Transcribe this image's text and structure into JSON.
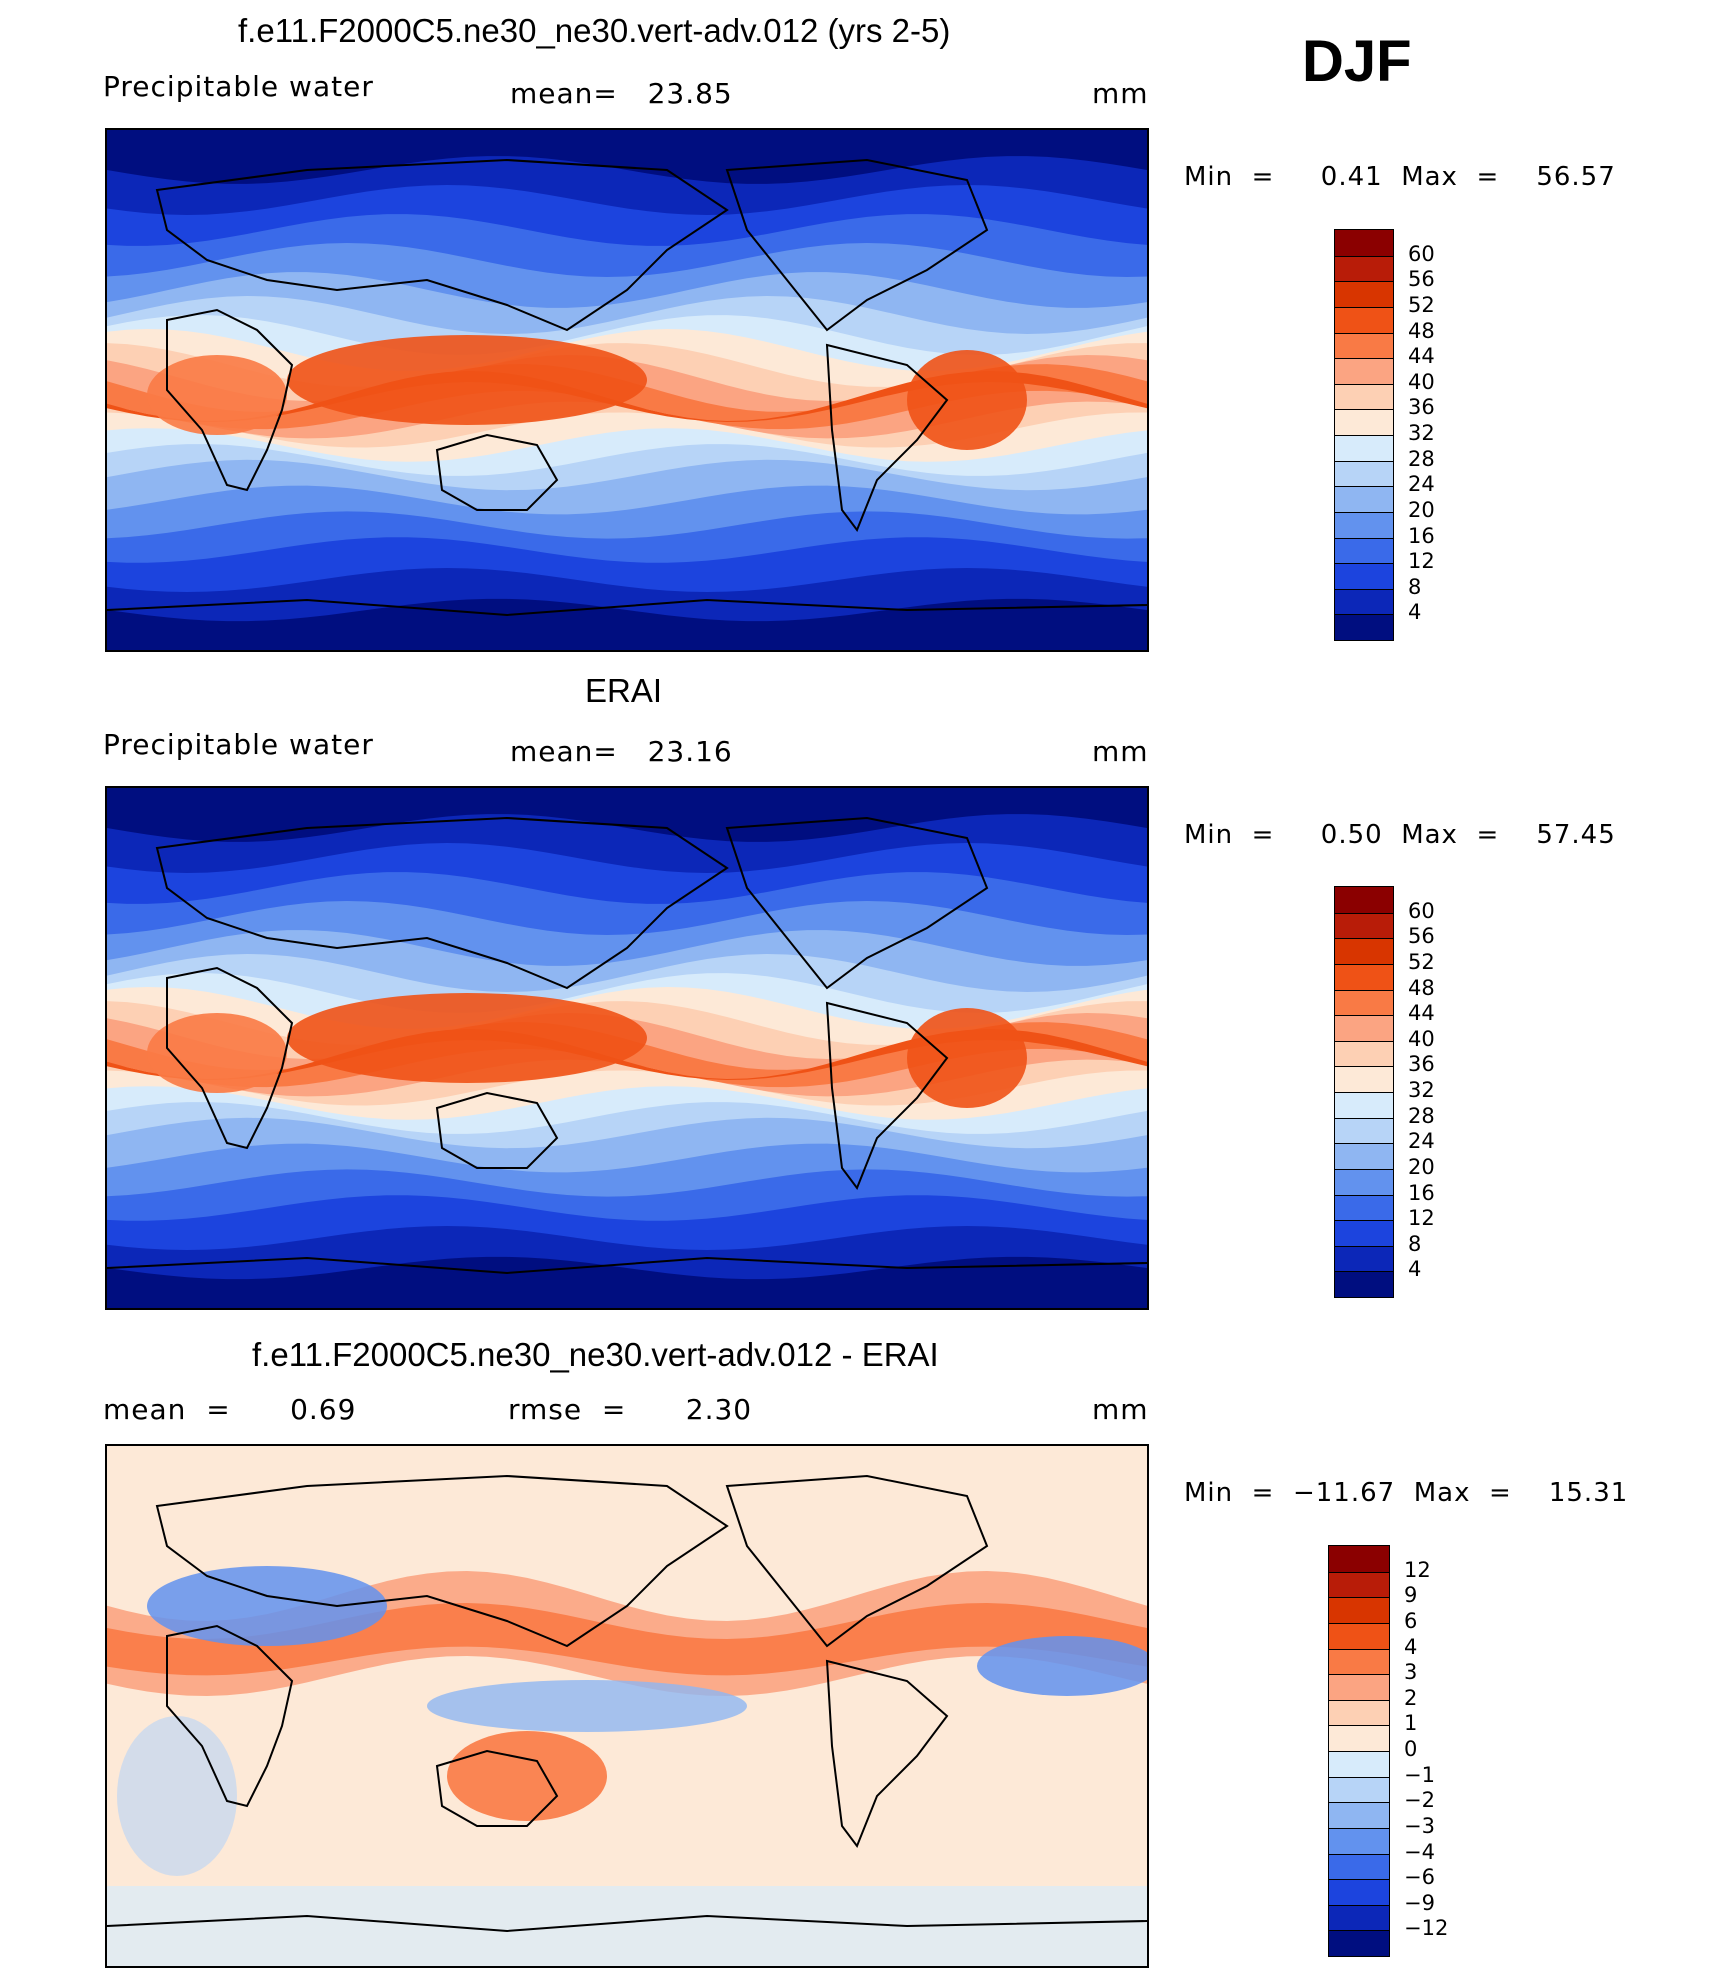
{
  "header": {
    "season": "DJF"
  },
  "panels": [
    {
      "title": "f.e11.F2000C5.ne30_ne30.vert-adv.012 (yrs 2-5)",
      "left_label": "Precipitable  water",
      "center_label": "mean=   23.85",
      "units": "mm",
      "minmax": "Min  =     0.41  Max  =    56.57",
      "colorbar": {
        "colors": [
          "#8b0000",
          "#b81c08",
          "#d83500",
          "#ef5216",
          "#f97a45",
          "#fba482",
          "#fdd0b4",
          "#fde9d7",
          "#d7ebfb",
          "#b7d4f7",
          "#8fb6f2",
          "#6292ee",
          "#3a6ae9",
          "#1c44de",
          "#0c27b8",
          "#000e80"
        ],
        "labels": [
          "60",
          "56",
          "52",
          "48",
          "44",
          "40",
          "36",
          "32",
          "28",
          "24",
          "20",
          "16",
          "12",
          "8",
          "4"
        ]
      },
      "map_data": {
        "kind": "model",
        "field": "precipitable water",
        "units": "mm",
        "mean": 23.85,
        "min": 0.41,
        "max": 56.57
      }
    },
    {
      "title": "ERAI",
      "left_label": "Precipitable  water",
      "center_label": "mean=   23.16",
      "units": "mm",
      "minmax": "Min  =     0.50  Max  =    57.45",
      "colorbar": {
        "colors": [
          "#8b0000",
          "#b81c08",
          "#d83500",
          "#ef5216",
          "#f97a45",
          "#fba482",
          "#fdd0b4",
          "#fde9d7",
          "#d7ebfb",
          "#b7d4f7",
          "#8fb6f2",
          "#6292ee",
          "#3a6ae9",
          "#1c44de",
          "#0c27b8",
          "#000e80"
        ],
        "labels": [
          "60",
          "56",
          "52",
          "48",
          "44",
          "40",
          "36",
          "32",
          "28",
          "24",
          "20",
          "16",
          "12",
          "8",
          "4"
        ]
      },
      "map_data": {
        "kind": "obs",
        "field": "precipitable water",
        "units": "mm",
        "mean": 23.16,
        "min": 0.5,
        "max": 57.45
      }
    },
    {
      "title": "f.e11.F2000C5.ne30_ne30.vert-adv.012 - ERAI",
      "left_label": "mean  =      0.69",
      "center_label": "rmse  =      2.30",
      "units": "mm",
      "minmax": "Min  =  −11.67  Max  =    15.31",
      "colorbar": {
        "colors": [
          "#8b0000",
          "#b81c08",
          "#d83500",
          "#ef5216",
          "#f97a45",
          "#fba482",
          "#fdd0b4",
          "#fde9d7",
          "#d7ebfb",
          "#b7d4f7",
          "#8fb6f2",
          "#6292ee",
          "#3a6ae9",
          "#1c44de",
          "#0c27b8",
          "#000e80"
        ],
        "labels": [
          "12",
          "9",
          "6",
          "4",
          "3",
          "2",
          "1",
          "0",
          "−1",
          "−2",
          "−3",
          "−4",
          "−6",
          "−9",
          "−12"
        ]
      },
      "map_data": {
        "kind": "diff",
        "field": "precipitable water difference",
        "units": "mm",
        "mean": 0.69,
        "rmse": 2.3,
        "min": -11.67,
        "max": 15.31
      }
    }
  ]
}
